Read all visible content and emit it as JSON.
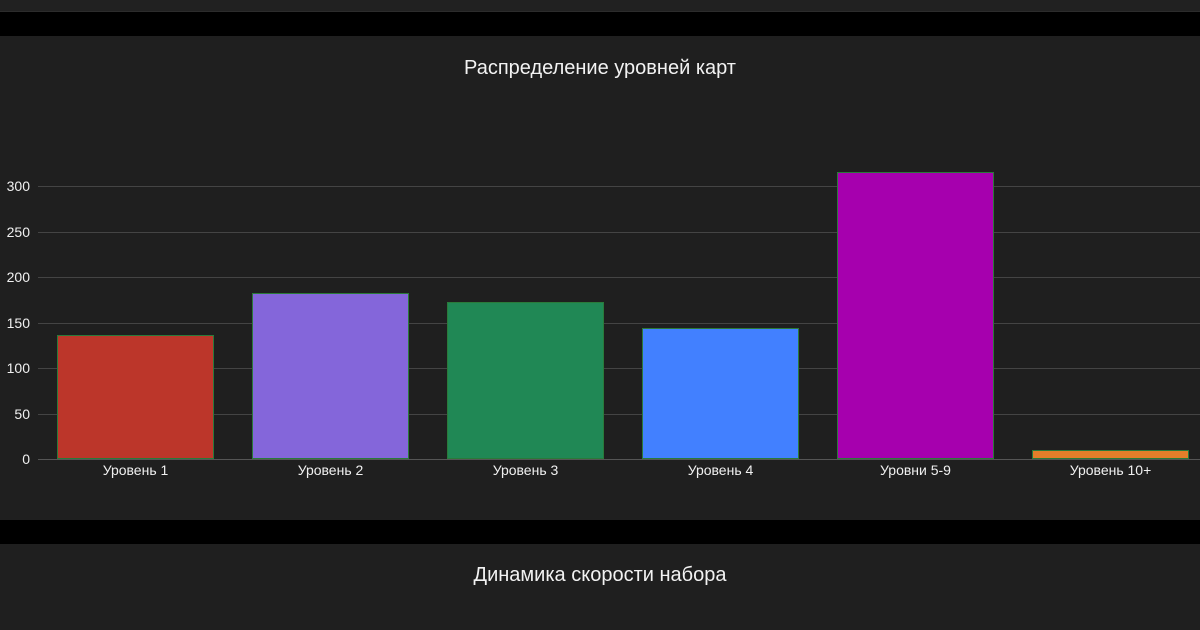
{
  "chart_data": [
    {
      "type": "bar",
      "title": "Распределение уровней карт",
      "categories": [
        "Уровень 1",
        "Уровень 2",
        "Уровень 3",
        "Уровень 4",
        "Уровни 5-9",
        "Уровень 10+"
      ],
      "values": [
        136,
        182,
        172,
        144,
        315,
        10
      ],
      "colors": [
        "#BC362A",
        "#8466DA",
        "#208855",
        "#4280FF",
        "#A600AE",
        "#E47E2A"
      ],
      "bar_border_color": "#2A7A3A",
      "xlabel": "",
      "ylabel": "",
      "yticks": [
        0,
        50,
        100,
        150,
        200,
        250,
        300
      ],
      "ylim": [
        0,
        330
      ],
      "grid": true,
      "legend": false
    },
    {
      "type": "line",
      "title": "Динамика скорости набора"
    }
  ],
  "charts": {
    "level_distribution": {
      "title": "Распределение уровней карт",
      "yticks": [
        "0",
        "50",
        "100",
        "150",
        "200",
        "250",
        "300"
      ],
      "categories": [
        "Уровень 1",
        "Уровень 2",
        "Уровень 3",
        "Уровень 4",
        "Уровни 5-9",
        "Уровень 10+"
      ]
    },
    "speed_dynamics": {
      "title": "Динамика скорости набора"
    }
  }
}
